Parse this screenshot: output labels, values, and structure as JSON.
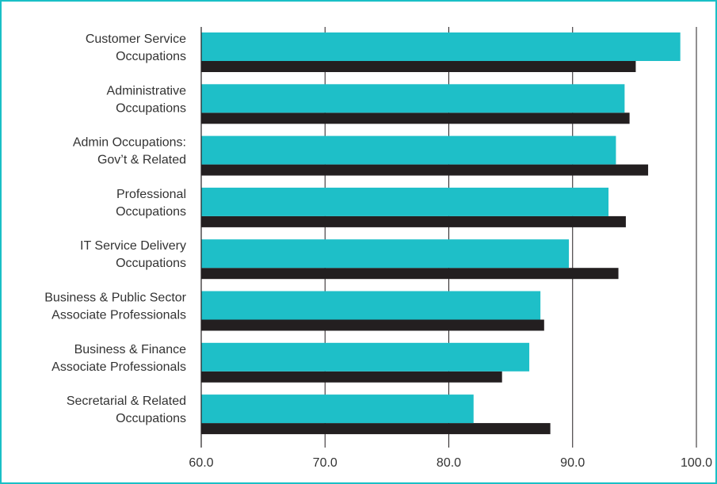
{
  "colors": {
    "frame": "#19bfc6",
    "series_a": "#1ebfc8",
    "series_b": "#231f20",
    "gridline": "#231f20",
    "text": "#333333"
  },
  "chart_data": {
    "type": "bar",
    "orientation": "horizontal",
    "title": "",
    "xlabel": "",
    "ylabel": "",
    "xlim": [
      60,
      100
    ],
    "grid": true,
    "legend": "none",
    "x_ticks": [
      "60.0",
      "70.0",
      "80.0",
      "90.0",
      "100.0"
    ],
    "x_tick_values": [
      60,
      70,
      80,
      90,
      100
    ],
    "categories": [
      [
        "Customer Service",
        "Occupations"
      ],
      [
        "Administrative",
        "Occupations"
      ],
      [
        "Admin Occupations:",
        "Gov’t & Related"
      ],
      [
        "Professional",
        "Occupations"
      ],
      [
        "IT Service Delivery",
        "Occupations"
      ],
      [
        "Business & Public Sector",
        "Associate Professionals"
      ],
      [
        "Business & Finance",
        "Associate Professionals"
      ],
      [
        "Secretarial & Related",
        "Occupations"
      ]
    ],
    "series": [
      {
        "values": [
          98.7,
          94.2,
          93.5,
          92.9,
          89.7,
          87.4,
          86.5,
          82.0
        ]
      },
      {
        "values": [
          95.1,
          94.6,
          96.1,
          94.3,
          93.7,
          87.7,
          84.3,
          88.2
        ]
      }
    ]
  }
}
